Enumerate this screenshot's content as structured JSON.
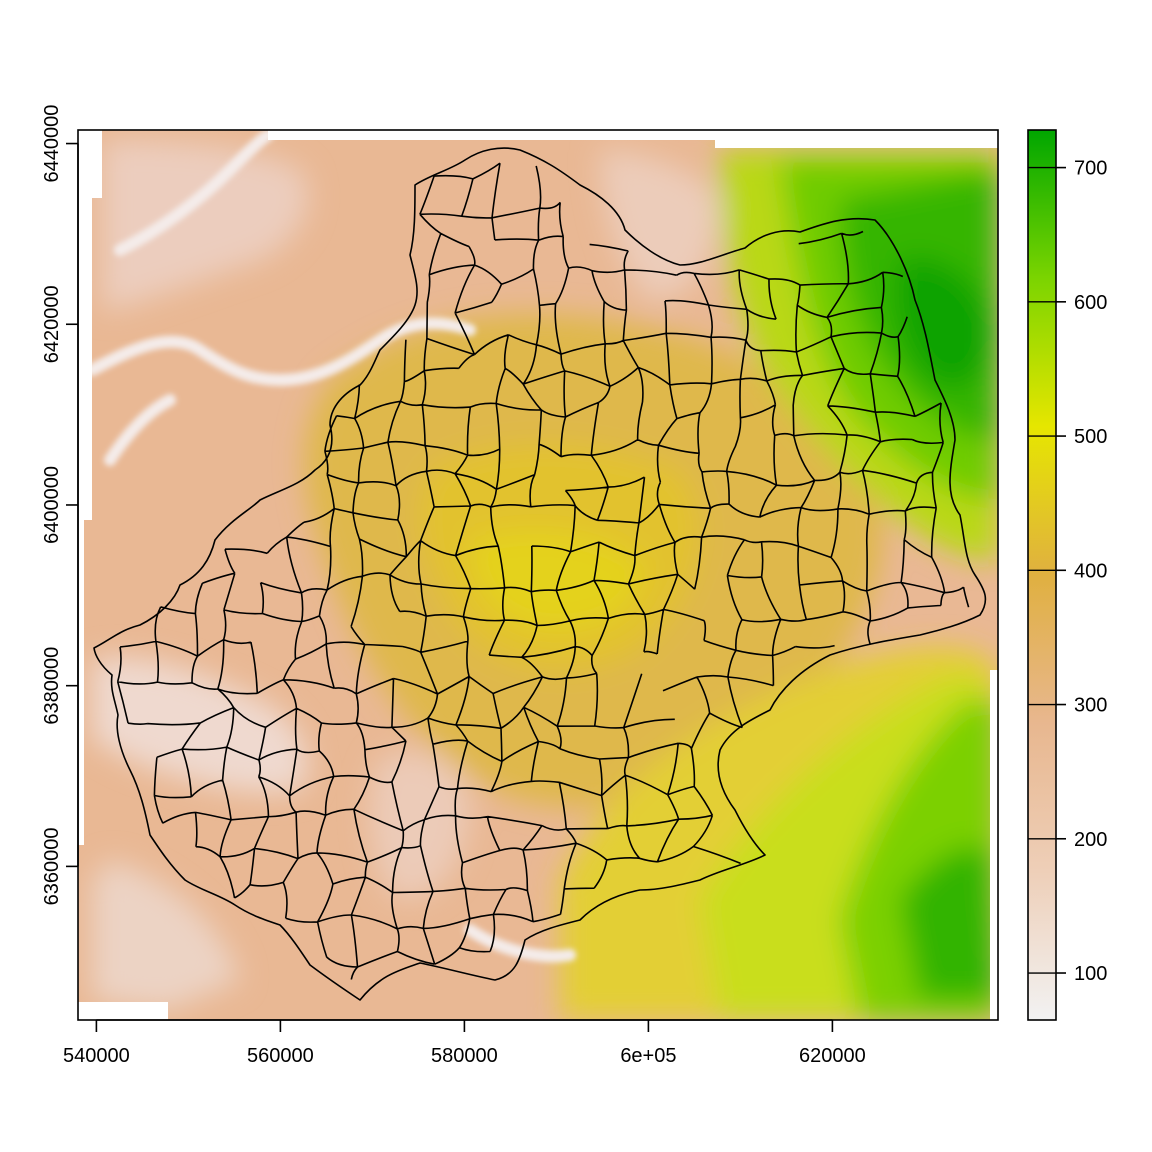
{
  "map": {
    "type": "raster-elevation-with-commune-boundaries",
    "x_axis": {
      "range": [
        538000,
        638000
      ],
      "ticks": [
        540000,
        560000,
        580000,
        600000,
        620000
      ],
      "tick_labels": [
        "540000",
        "560000",
        "580000",
        "6e+05",
        "620000"
      ]
    },
    "y_axis": {
      "range": [
        6343000,
        6441500
      ],
      "ticks": [
        6360000,
        6380000,
        6400000,
        6420000,
        6440000
      ],
      "tick_labels": [
        "6360000",
        "6380000",
        "6400000",
        "6420000",
        "6440000"
      ]
    },
    "legend": {
      "placement": "right",
      "range": [
        65,
        728
      ],
      "ticks": [
        100,
        200,
        300,
        400,
        500,
        600,
        700
      ],
      "tick_labels": [
        "100",
        "200",
        "300",
        "400",
        "500",
        "600",
        "700"
      ],
      "colors": [
        "#f2f2f2",
        "#eecfb8",
        "#e8b78f",
        "#e0b040",
        "#e6e600",
        "#7bd400",
        "#00a600"
      ]
    },
    "boundary_color": "#000000"
  }
}
